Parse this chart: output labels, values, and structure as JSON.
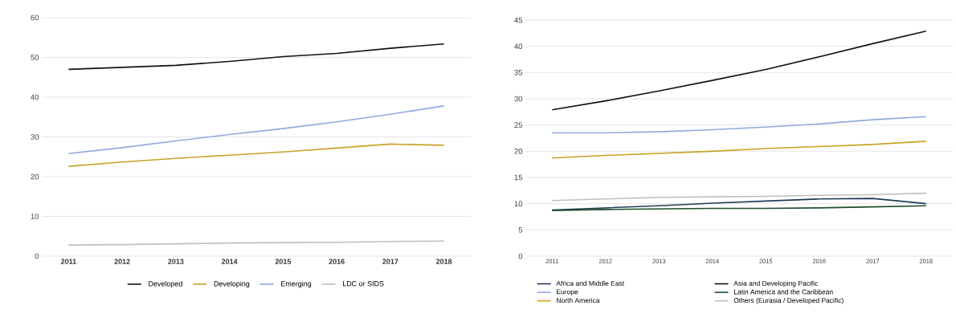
{
  "chart_data": [
    {
      "type": "line",
      "categories": [
        "2011",
        "2012",
        "2013",
        "2014",
        "2015",
        "2016",
        "2017",
        "2018"
      ],
      "series": [
        {
          "name": "Developed",
          "color": "#111111",
          "values": [
            47.0,
            47.5,
            48.0,
            49.0,
            50.2,
            51.0,
            52.3,
            53.4
          ]
        },
        {
          "name": "Developing",
          "color": "#c9a227",
          "values": [
            22.6,
            23.7,
            24.6,
            25.4,
            26.2,
            27.2,
            28.2,
            27.9
          ]
        },
        {
          "name": "Emerging",
          "color": "#8faadc",
          "values": [
            25.8,
            27.3,
            29.0,
            30.6,
            32.1,
            33.8,
            35.7,
            37.8
          ]
        },
        {
          "name": "LDC or SIDS",
          "color": "#bfbfbf",
          "values": [
            2.8,
            2.9,
            3.1,
            3.3,
            3.4,
            3.5,
            3.7,
            3.8
          ]
        }
      ],
      "ylim": [
        0,
        60
      ],
      "yticks": [
        0,
        10,
        20,
        30,
        40,
        50,
        60
      ],
      "grid": "y",
      "legend": "bottom",
      "marker": "none"
    },
    {
      "type": "line",
      "categories": [
        "2011",
        "2012",
        "2013",
        "2014",
        "2015",
        "2016",
        "2017",
        "2018"
      ],
      "series": [
        {
          "name": "Africa and Middle East",
          "color": "#1f3b57",
          "values": [
            8.8,
            9.2,
            9.6,
            10.1,
            10.5,
            10.9,
            11.0,
            10.0
          ]
        },
        {
          "name": "Asia and Developing Pacific",
          "color": "#111111",
          "values": [
            27.9,
            29.6,
            31.5,
            33.5,
            35.6,
            38.0,
            40.5,
            42.9
          ]
        },
        {
          "name": "Europe",
          "color": "#8faadc",
          "values": [
            23.5,
            23.5,
            23.7,
            24.1,
            24.6,
            25.2,
            26.0,
            26.6
          ]
        },
        {
          "name": "Latin America and the Caribbean",
          "color": "#1e4d2b",
          "values": [
            8.7,
            8.9,
            9.0,
            9.1,
            9.1,
            9.2,
            9.4,
            9.6
          ]
        },
        {
          "name": "North America",
          "color": "#c9a227",
          "values": [
            18.7,
            19.2,
            19.6,
            20.0,
            20.5,
            20.9,
            21.3,
            21.9
          ]
        },
        {
          "name": "Others (Eurasia / Developed Pacific)",
          "color": "#bfbfbf",
          "values": [
            10.6,
            10.9,
            11.2,
            11.3,
            11.4,
            11.6,
            11.7,
            12.0
          ]
        }
      ],
      "ylim": [
        0,
        45
      ],
      "yticks": [
        0,
        5,
        10,
        15,
        20,
        25,
        30,
        35,
        40,
        45
      ],
      "grid": "y",
      "legend": "bottom",
      "marker": "none"
    }
  ]
}
